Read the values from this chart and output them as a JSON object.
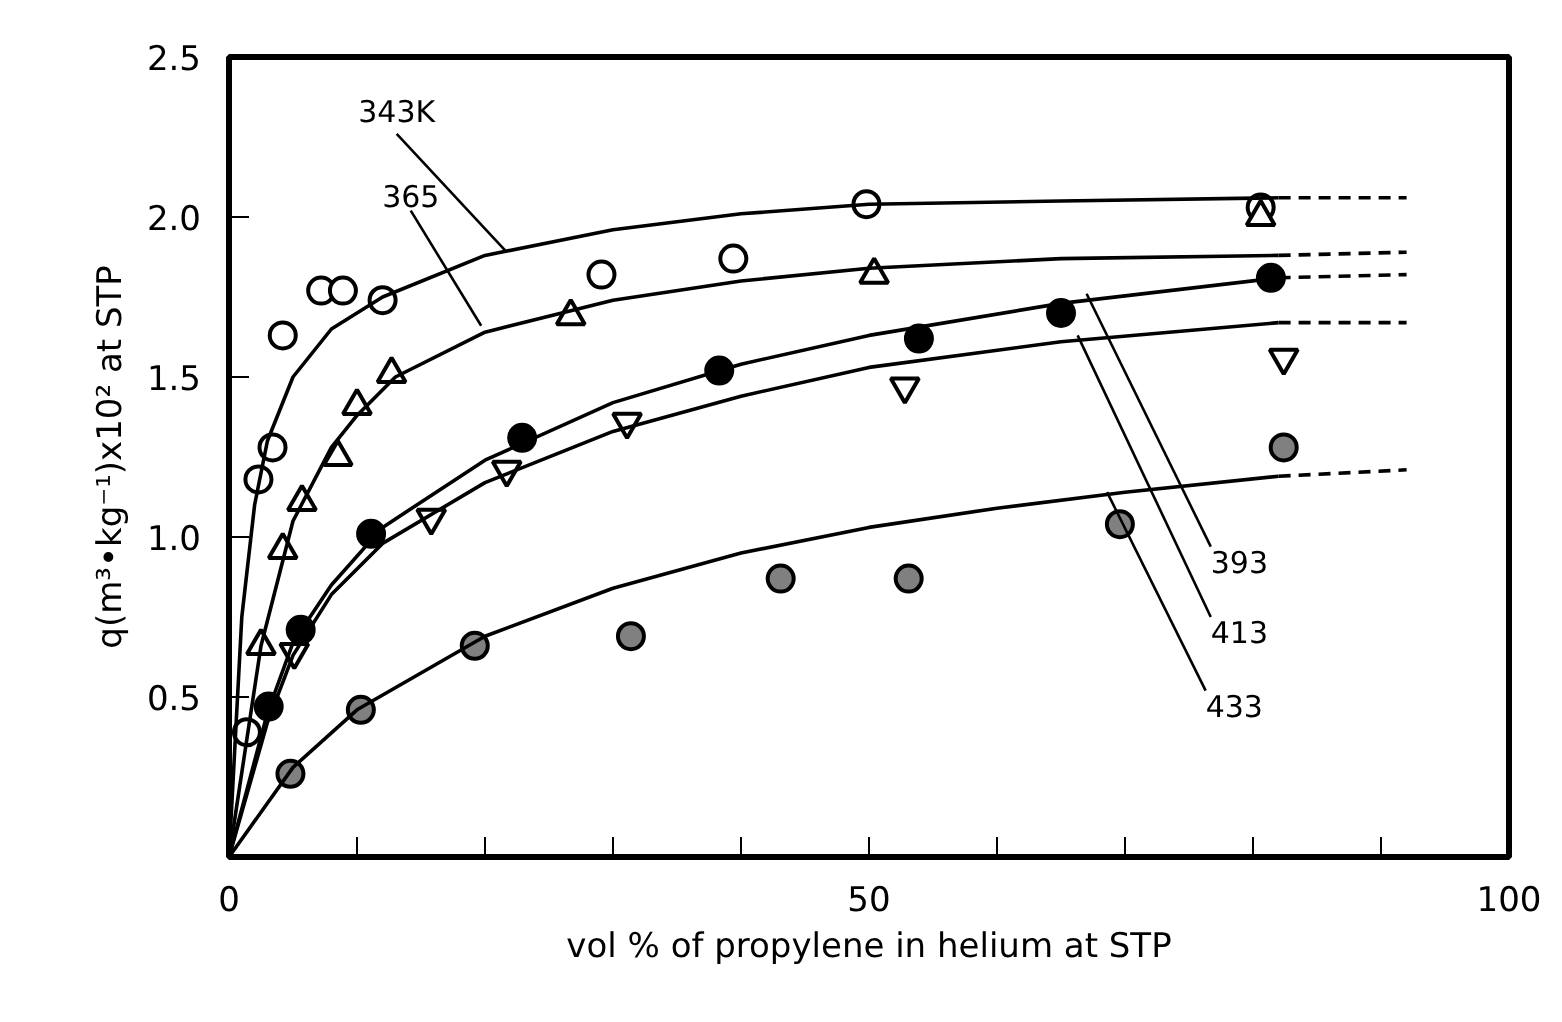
{
  "chart_data": {
    "type": "scatter",
    "xlabel": "vol % of propylene in helium at STP",
    "ylabel": "q(m³•kg⁻¹)x10² at STP",
    "xlim": [
      0,
      100
    ],
    "ylim": [
      0,
      2.5
    ],
    "xticks": [
      0,
      {
        "value": 10,
        "label": null
      },
      {
        "value": 20,
        "label": null
      },
      {
        "value": 30,
        "label": null
      },
      {
        "value": 40,
        "label": null
      },
      50,
      {
        "value": 60,
        "label": null
      },
      {
        "value": 70,
        "label": null
      },
      {
        "value": 80,
        "label": null
      },
      {
        "value": 90,
        "label": null
      },
      100
    ],
    "yticks": [
      0.5,
      {
        "value": 1,
        "label": "1.0"
      },
      1.5,
      {
        "value": 2,
        "label": "2.0"
      },
      2.5
    ],
    "grid": false,
    "series": [
      {
        "marker": "circle",
        "color": "#ffffff",
        "x": [
          1.4,
          2.3,
          3.4,
          4.2,
          7.2,
          8.9,
          12.0,
          29.1,
          39.4,
          49.8,
          80.6
        ],
        "values": [
          0.39,
          1.18,
          1.28,
          1.63,
          1.77,
          1.77,
          1.74,
          1.82,
          1.87,
          2.04,
          2.03
        ]
      },
      {
        "marker": "triangle",
        "color": "#ffffff",
        "x": [
          2.5,
          4.2,
          5.7,
          8.5,
          10.0,
          12.7,
          26.7,
          50.4,
          80.6
        ],
        "values": [
          0.66,
          0.96,
          1.11,
          1.25,
          1.41,
          1.51,
          1.69,
          1.82,
          2.0
        ]
      },
      {
        "marker": "circle",
        "color": "#000000",
        "x": [
          3.1,
          5.6,
          11.1,
          22.9,
          38.3,
          53.9,
          65.0,
          81.4
        ],
        "values": [
          0.47,
          0.71,
          1.01,
          1.31,
          1.52,
          1.62,
          1.7,
          1.81
        ]
      },
      {
        "color": "#ffffff",
        "x": [
          5.1,
          15.8,
          21.7,
          31.1,
          52.8,
          82.4
        ],
        "values": [
          0.64,
          1.06,
          1.21,
          1.36,
          1.47,
          1.56
        ]
      },
      {
        "marker": "circle",
        "color": "#808080",
        "x": [
          4.8,
          10.3,
          19.2,
          31.4,
          43.1,
          53.1,
          69.6,
          82.4
        ],
        "values": [
          0.26,
          0.46,
          0.66,
          0.69,
          0.87,
          0.87,
          1.04,
          1.28
        ]
      },
      {
        "type": "line",
        "line_style": "solid",
        "color": "#000000",
        "x": [
          0,
          1,
          2,
          3,
          5,
          8,
          12,
          20,
          30,
          40,
          50,
          65,
          82
        ],
        "values": [
          0,
          0.75,
          1.1,
          1.3,
          1.5,
          1.65,
          1.75,
          1.88,
          1.96,
          2.01,
          2.04,
          2.05,
          2.06
        ]
      },
      {
        "type": "line",
        "line_style": "dashed",
        "color": "#000000",
        "x": [
          82,
          92
        ],
        "values": [
          2.06,
          2.06
        ]
      },
      {
        "type": "line",
        "line_style": "solid",
        "color": "#000000",
        "x": [
          0,
          2.5,
          5,
          8,
          10,
          13,
          20,
          30,
          40,
          50,
          65,
          82
        ],
        "values": [
          0,
          0.66,
          1.05,
          1.28,
          1.38,
          1.5,
          1.64,
          1.74,
          1.8,
          1.84,
          1.87,
          1.88
        ]
      },
      {
        "type": "line",
        "line_style": "dashed",
        "color": "#000000",
        "x": [
          82,
          92
        ],
        "values": [
          1.88,
          1.89
        ]
      },
      {
        "type": "line",
        "line_style": "solid",
        "color": "#000000",
        "x": [
          0,
          3,
          5,
          8,
          12,
          20,
          30,
          40,
          50,
          65,
          82
        ],
        "values": [
          0,
          0.45,
          0.67,
          0.85,
          1.03,
          1.24,
          1.42,
          1.54,
          1.63,
          1.73,
          1.81
        ]
      },
      {
        "type": "line",
        "line_style": "dashed",
        "color": "#000000",
        "x": [
          82,
          92
        ],
        "values": [
          1.81,
          1.82
        ]
      },
      {
        "type": "line",
        "line_style": "solid",
        "color": "#000000",
        "x": [
          0,
          3,
          5,
          8,
          12,
          20,
          30,
          40,
          50,
          65,
          82
        ],
        "values": [
          0,
          0.42,
          0.63,
          0.82,
          0.98,
          1.17,
          1.33,
          1.44,
          1.53,
          1.61,
          1.67
        ]
      },
      {
        "type": "line",
        "line_style": "dashed",
        "color": "#000000",
        "x": [
          82,
          92
        ],
        "values": [
          1.67,
          1.67
        ]
      },
      {
        "type": "line",
        "line_style": "solid",
        "color": "#000000",
        "x": [
          0,
          5,
          10,
          20,
          30,
          40,
          50,
          60,
          70,
          82
        ],
        "values": [
          0,
          0.28,
          0.46,
          0.69,
          0.84,
          0.95,
          1.03,
          1.09,
          1.14,
          1.19
        ]
      },
      {
        "type": "line",
        "line_style": "dashed",
        "color": "#000000",
        "x": [
          82,
          92
        ],
        "values": [
          1.19,
          1.21
        ]
      }
    ],
    "annotations": [
      {
        "text": "343K",
        "x": 21.7,
        "y": 1.89
      },
      {
        "text": "365",
        "x": 19.7,
        "y": 1.66
      },
      {
        "text": "393",
        "x": 67,
        "y": 1.76
      },
      {
        "text": "413",
        "x": 66.3,
        "y": 1.63
      },
      {
        "text": "433",
        "x": 68.6,
        "y": 1.14
      }
    ]
  }
}
